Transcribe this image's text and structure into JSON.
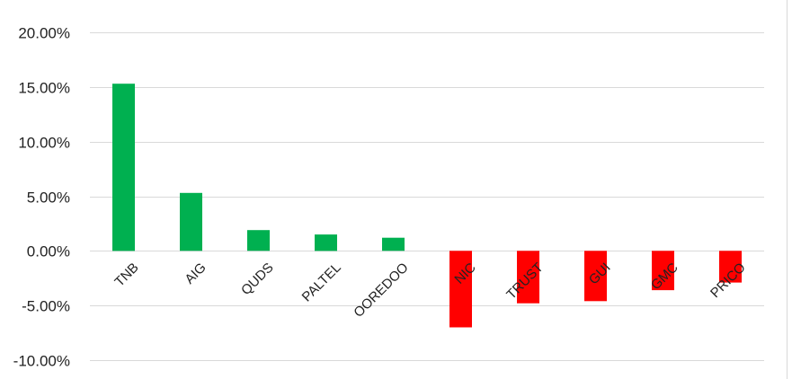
{
  "chart_data": {
    "type": "bar",
    "categories": [
      "TNB",
      "AIG",
      "QUDS",
      "PALTEL",
      "OOREDOO",
      "NIC",
      "TRUST",
      "GUI",
      "GMC",
      "PRICO"
    ],
    "values": [
      15.3,
      5.3,
      1.9,
      1.5,
      1.2,
      -7.0,
      -4.8,
      -4.6,
      -3.6,
      -2.9
    ],
    "unit": "%",
    "ylim": [
      -10,
      20
    ],
    "yticks": [
      20,
      15,
      10,
      5,
      0,
      -5,
      -10
    ],
    "ytick_labels": [
      "20.00%",
      "15.00%",
      "10.00%",
      "5.00%",
      "0.00%",
      "-5.00%",
      "-10.00%"
    ],
    "grid": true,
    "legend": "none",
    "title": "",
    "xlabel": "",
    "ylabel": "",
    "colors": {
      "positive": "#00b050",
      "negative": "#ff0000",
      "grid": "#d9d9d9"
    }
  }
}
